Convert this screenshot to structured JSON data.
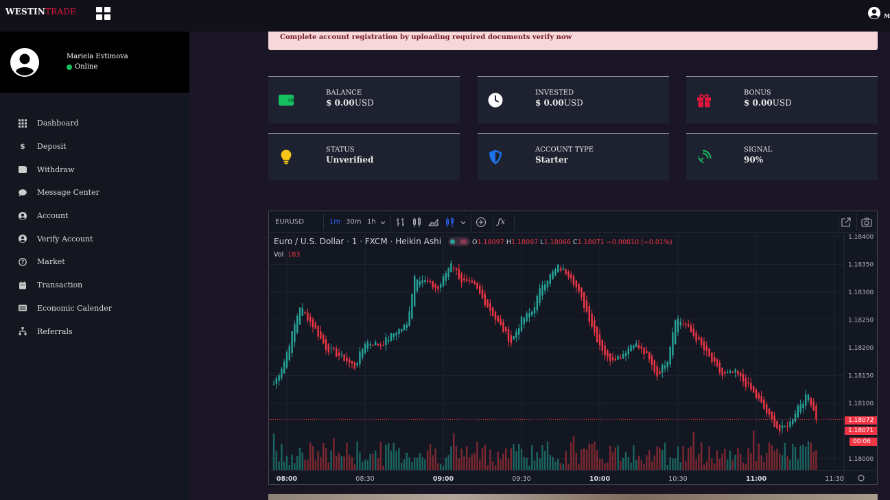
{
  "brand": {
    "part1": "WESTIN",
    "part2": "TRADE"
  },
  "topbar": {
    "user_initial": "M"
  },
  "profile": {
    "name": "Mariela Evtimova",
    "status": "Online"
  },
  "menu": [
    {
      "label": "Dashboard",
      "icon": "grid-icon"
    },
    {
      "label": "Deposit",
      "icon": "dollar-icon"
    },
    {
      "label": "Withdraw",
      "icon": "wallet-icon"
    },
    {
      "label": "Message Center",
      "icon": "chat-icon"
    },
    {
      "label": "Account",
      "icon": "user-circle-icon"
    },
    {
      "label": "Verify Account",
      "icon": "user-circle-icon"
    },
    {
      "label": "Market",
      "icon": "question-circle-icon"
    },
    {
      "label": "Transaction",
      "icon": "calendar-icon"
    },
    {
      "label": "Economic Calender",
      "icon": "list-icon"
    },
    {
      "label": "Referrals",
      "icon": "sitemap-icon"
    }
  ],
  "alert": "Complete account registration by uploading required documents verify now",
  "cards": {
    "balance": {
      "label": "BALANCE",
      "value": "$ 0.00",
      "unit": "USD",
      "color": "#16c060"
    },
    "invested": {
      "label": "INVESTED",
      "value": "$ 0.00",
      "unit": "USD",
      "color": "#ffffff"
    },
    "bonus": {
      "label": "BONUS",
      "value": "$ 0.00",
      "unit": "USD",
      "color": "#e0163c"
    },
    "status": {
      "label": "STATUS",
      "value": "Unverified",
      "color": "#f5c518"
    },
    "account_type": {
      "label": "ACCOUNT TYPE",
      "value": "Starter",
      "color": "#1a73e8"
    },
    "signal": {
      "label": "SIGNAL",
      "value": "90%",
      "color": "#16c060"
    }
  },
  "chart": {
    "symbol": "EURUSD",
    "intervals": [
      "1m",
      "30m",
      "1h"
    ],
    "active_interval": "1m",
    "legend": "Euro / U.S. Dollar · 1 · FXCM · Heikin Ashi",
    "ohlc": {
      "o_label": "O",
      "o": "1.18097",
      "h_label": "H",
      "h": "1.18097",
      "l_label": "L",
      "l": "1.18066",
      "c_label": "C",
      "c": "1.18071",
      "change": "−0.00010 (−0.01%)"
    },
    "vol_label": "Vol",
    "vol": "183",
    "price_tag_1": "1.18072",
    "price_tag_2": "1.18071",
    "countdown": "00:06",
    "up_color": "#26a69a",
    "down_color": "#f23645"
  },
  "chart_data": {
    "type": "candlestick",
    "title": "Euro / U.S. Dollar · 1 · FXCM · Heikin Ashi",
    "y_ticks": [
      "1.18400",
      "1.18350",
      "1.18300",
      "1.18250",
      "1.18200",
      "1.18150",
      "1.18100",
      "1.18000"
    ],
    "x_ticks": [
      "08:00",
      "08:30",
      "09:00",
      "09:30",
      "10:00",
      "10:30",
      "11:00",
      "11:30"
    ],
    "ylim": [
      1.17985,
      1.18405
    ],
    "close_path": [
      [
        "07:55",
        1.18135
      ],
      [
        "07:59",
        1.18175
      ],
      [
        "08:05",
        1.18275
      ],
      [
        "08:10",
        1.1824
      ],
      [
        "08:15",
        1.182
      ],
      [
        "08:22",
        1.1818
      ],
      [
        "08:26",
        1.18165
      ],
      [
        "08:30",
        1.1821
      ],
      [
        "08:36",
        1.18205
      ],
      [
        "08:42",
        1.1823
      ],
      [
        "08:46",
        1.1824
      ],
      [
        "08:49",
        1.1833
      ],
      [
        "08:53",
        1.1832
      ],
      [
        "08:58",
        1.18305
      ],
      [
        "09:03",
        1.18355
      ],
      [
        "09:07",
        1.1832
      ],
      [
        "09:12",
        1.1831
      ],
      [
        "09:17",
        1.18275
      ],
      [
        "09:21",
        1.18245
      ],
      [
        "09:26",
        1.1821
      ],
      [
        "09:30",
        1.1825
      ],
      [
        "09:34",
        1.18265
      ],
      [
        "09:38",
        1.18315
      ],
      [
        "09:44",
        1.18345
      ],
      [
        "09:49",
        1.1833
      ],
      [
        "09:55",
        1.18265
      ],
      [
        "09:59",
        1.18215
      ],
      [
        "10:03",
        1.1818
      ],
      [
        "10:08",
        1.18185
      ],
      [
        "10:13",
        1.1821
      ],
      [
        "10:18",
        1.18185
      ],
      [
        "10:22",
        1.1815
      ],
      [
        "10:26",
        1.1818
      ],
      [
        "10:29",
        1.18255
      ],
      [
        "10:33",
        1.1824
      ],
      [
        "10:38",
        1.1821
      ],
      [
        "10:43",
        1.18175
      ],
      [
        "10:47",
        1.1815
      ],
      [
        "10:52",
        1.18155
      ],
      [
        "10:57",
        1.1813
      ],
      [
        "11:01",
        1.18105
      ],
      [
        "11:05",
        1.18075
      ],
      [
        "11:09",
        1.1805
      ],
      [
        "11:13",
        1.18065
      ],
      [
        "11:16",
        1.18095
      ],
      [
        "11:20",
        1.18115
      ],
      [
        "11:23",
        1.18075
      ]
    ],
    "last_price": 1.18071
  }
}
